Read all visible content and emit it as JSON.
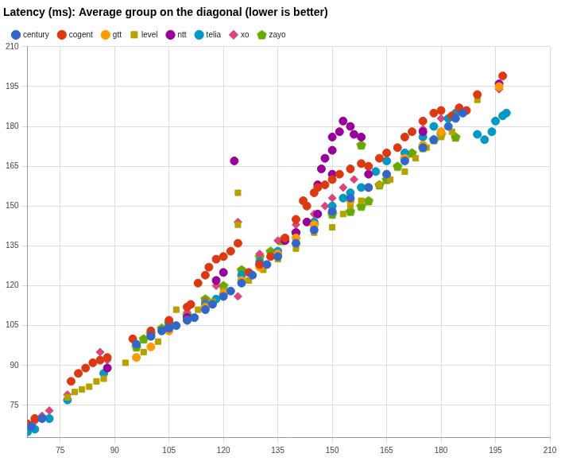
{
  "chart_data": {
    "type": "scatter",
    "title": "Latency (ms): Average group on the diagonal (lower is better)",
    "xlim": [
      66,
      210
    ],
    "xticks": [
      75,
      90,
      105,
      120,
      135,
      150,
      165,
      180,
      195,
      210
    ],
    "ylim": [
      63,
      210
    ],
    "yticks": [
      75,
      90,
      105,
      120,
      135,
      150,
      165,
      180,
      195,
      210
    ],
    "grid": true,
    "legend": "top",
    "series": [
      {
        "name": "century",
        "color": "#3366cc",
        "marker": "circle",
        "values": [
          [
            67,
            67
          ],
          [
            70,
            70
          ],
          [
            96,
            98
          ],
          [
            100,
            101
          ],
          [
            103,
            103
          ],
          [
            105,
            104
          ],
          [
            107,
            105
          ],
          [
            110,
            107
          ],
          [
            112,
            108
          ],
          [
            115,
            111
          ],
          [
            117,
            113
          ],
          [
            120,
            116
          ],
          [
            122,
            118
          ],
          [
            125,
            121
          ],
          [
            128,
            124
          ],
          [
            132,
            128
          ],
          [
            135,
            131
          ],
          [
            140,
            136
          ],
          [
            145,
            141
          ],
          [
            150,
            148
          ],
          [
            155,
            153
          ],
          [
            160,
            157
          ],
          [
            165,
            162
          ],
          [
            170,
            167
          ],
          [
            175,
            172
          ],
          [
            178,
            175
          ],
          [
            182,
            180
          ],
          [
            184,
            183
          ],
          [
            186,
            185
          ]
        ]
      },
      {
        "name": "cogent",
        "color": "#dc3912",
        "marker": "circle",
        "values": [
          [
            66,
            68
          ],
          [
            68,
            70
          ],
          [
            78,
            84
          ],
          [
            80,
            87
          ],
          [
            82,
            89
          ],
          [
            84,
            91
          ],
          [
            86,
            92
          ],
          [
            88,
            93
          ],
          [
            95,
            100
          ],
          [
            100,
            103
          ],
          [
            105,
            107
          ],
          [
            110,
            112
          ],
          [
            111,
            113
          ],
          [
            113,
            121
          ],
          [
            115,
            124
          ],
          [
            116,
            127
          ],
          [
            118,
            130
          ],
          [
            120,
            131
          ],
          [
            122,
            133
          ],
          [
            124,
            136
          ],
          [
            127,
            125
          ],
          [
            130,
            128
          ],
          [
            133,
            131
          ],
          [
            137,
            138
          ],
          [
            140,
            145
          ],
          [
            142,
            152
          ],
          [
            143,
            150
          ],
          [
            145,
            155
          ],
          [
            146,
            157
          ],
          [
            148,
            158
          ],
          [
            150,
            160
          ],
          [
            152,
            162
          ],
          [
            155,
            164
          ],
          [
            158,
            166
          ],
          [
            160,
            165
          ],
          [
            163,
            168
          ],
          [
            165,
            170
          ],
          [
            168,
            172
          ],
          [
            170,
            176
          ],
          [
            172,
            178
          ],
          [
            175,
            182
          ],
          [
            178,
            185
          ],
          [
            180,
            186
          ],
          [
            183,
            184
          ],
          [
            185,
            187
          ],
          [
            187,
            186
          ],
          [
            190,
            192
          ],
          [
            197,
            199
          ]
        ]
      },
      {
        "name": "gtt",
        "color": "#ff9900",
        "marker": "circle",
        "values": [
          [
            96,
            93
          ],
          [
            100,
            97
          ],
          [
            105,
            103
          ],
          [
            110,
            107
          ],
          [
            115,
            112
          ],
          [
            120,
            117
          ],
          [
            125,
            122
          ],
          [
            130,
            127
          ],
          [
            135,
            132
          ],
          [
            140,
            138
          ],
          [
            145,
            143
          ],
          [
            150,
            148
          ],
          [
            155,
            152
          ],
          [
            160,
            157
          ],
          [
            165,
            162
          ],
          [
            170,
            168
          ],
          [
            175,
            173
          ],
          [
            180,
            178
          ],
          [
            196,
            195
          ]
        ]
      },
      {
        "name": "level",
        "color": "#b8a000",
        "marker": "square",
        "values": [
          [
            77,
            78
          ],
          [
            79,
            80
          ],
          [
            81,
            81
          ],
          [
            83,
            82
          ],
          [
            85,
            84
          ],
          [
            87,
            85
          ],
          [
            93,
            91
          ],
          [
            96,
            93
          ],
          [
            98,
            95
          ],
          [
            102,
            99
          ],
          [
            107,
            111
          ],
          [
            110,
            112
          ],
          [
            113,
            111
          ],
          [
            117,
            114
          ],
          [
            120,
            118
          ],
          [
            124,
            143
          ],
          [
            124,
            155
          ],
          [
            127,
            122
          ],
          [
            131,
            126
          ],
          [
            135,
            130
          ],
          [
            140,
            134
          ],
          [
            145,
            140
          ],
          [
            150,
            142
          ],
          [
            153,
            147
          ],
          [
            155,
            150
          ],
          [
            158,
            152
          ],
          [
            160,
            157
          ],
          [
            163,
            158
          ],
          [
            166,
            160
          ],
          [
            170,
            163
          ],
          [
            173,
            168
          ],
          [
            176,
            172
          ],
          [
            180,
            176
          ],
          [
            183,
            178
          ],
          [
            190,
            190
          ],
          [
            196,
            195
          ]
        ]
      },
      {
        "name": "ntt",
        "color": "#990099",
        "marker": "circle",
        "values": [
          [
            88,
            89
          ],
          [
            105,
            104
          ],
          [
            110,
            108
          ],
          [
            115,
            112
          ],
          [
            118,
            122
          ],
          [
            120,
            125
          ],
          [
            123,
            167
          ],
          [
            130,
            128
          ],
          [
            137,
            137
          ],
          [
            140,
            140
          ],
          [
            143,
            144
          ],
          [
            146,
            147
          ],
          [
            146,
            158
          ],
          [
            147,
            164
          ],
          [
            148,
            168
          ],
          [
            150,
            162
          ],
          [
            150,
            171
          ],
          [
            150,
            176
          ],
          [
            152,
            178
          ],
          [
            153,
            182
          ],
          [
            155,
            180
          ],
          [
            156,
            177
          ],
          [
            158,
            176
          ],
          [
            160,
            162
          ],
          [
            175,
            178
          ],
          [
            196,
            196
          ]
        ]
      },
      {
        "name": "telia",
        "color": "#0099c6",
        "marker": "circle",
        "values": [
          [
            66,
            65
          ],
          [
            68,
            66
          ],
          [
            72,
            70
          ],
          [
            77,
            77
          ],
          [
            87,
            87
          ],
          [
            100,
            101
          ],
          [
            105,
            105
          ],
          [
            110,
            108
          ],
          [
            115,
            113
          ],
          [
            118,
            115
          ],
          [
            120,
            117
          ],
          [
            125,
            124
          ],
          [
            130,
            129
          ],
          [
            135,
            133
          ],
          [
            140,
            140
          ],
          [
            145,
            144
          ],
          [
            150,
            150
          ],
          [
            153,
            153
          ],
          [
            155,
            155
          ],
          [
            158,
            157
          ],
          [
            162,
            163
          ],
          [
            165,
            167
          ],
          [
            170,
            170
          ],
          [
            175,
            176
          ],
          [
            178,
            180
          ],
          [
            182,
            183
          ],
          [
            184,
            185
          ],
          [
            190,
            177
          ],
          [
            192,
            175
          ],
          [
            194,
            178
          ],
          [
            195,
            182
          ],
          [
            197,
            184
          ],
          [
            198,
            185
          ]
        ]
      },
      {
        "name": "xo",
        "color": "#dd4477",
        "marker": "diamond",
        "values": [
          [
            66,
            68
          ],
          [
            68,
            69
          ],
          [
            70,
            71
          ],
          [
            72,
            73
          ],
          [
            77,
            79
          ],
          [
            86,
            95
          ],
          [
            88,
            92
          ],
          [
            100,
            102
          ],
          [
            105,
            106
          ],
          [
            110,
            110
          ],
          [
            115,
            114
          ],
          [
            118,
            120
          ],
          [
            124,
            144
          ],
          [
            124,
            116
          ],
          [
            130,
            132
          ],
          [
            135,
            137
          ],
          [
            140,
            143
          ],
          [
            145,
            147
          ],
          [
            148,
            150
          ],
          [
            150,
            153
          ],
          [
            153,
            157
          ],
          [
            156,
            160
          ],
          [
            160,
            165
          ],
          [
            165,
            170
          ],
          [
            170,
            176
          ],
          [
            175,
            179
          ],
          [
            180,
            183
          ],
          [
            185,
            186
          ],
          [
            196,
            194
          ]
        ]
      },
      {
        "name": "zayo",
        "color": "#66aa00",
        "marker": "pentagon",
        "values": [
          [
            96,
            97
          ],
          [
            98,
            100
          ],
          [
            100,
            102
          ],
          [
            103,
            104
          ],
          [
            105,
            106
          ],
          [
            110,
            109
          ],
          [
            115,
            115
          ],
          [
            120,
            120
          ],
          [
            125,
            126
          ],
          [
            130,
            131
          ],
          [
            133,
            133
          ],
          [
            136,
            137
          ],
          [
            140,
            140
          ],
          [
            145,
            143
          ],
          [
            150,
            147
          ],
          [
            155,
            148
          ],
          [
            158,
            150
          ],
          [
            158,
            173
          ],
          [
            160,
            152
          ],
          [
            163,
            158
          ],
          [
            165,
            160
          ],
          [
            168,
            165
          ],
          [
            170,
            168
          ],
          [
            172,
            170
          ],
          [
            175,
            172
          ],
          [
            178,
            175
          ],
          [
            180,
            177
          ],
          [
            184,
            176
          ]
        ]
      }
    ]
  }
}
